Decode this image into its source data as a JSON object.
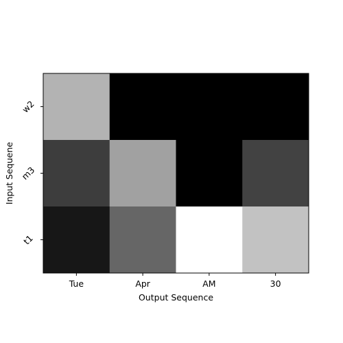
{
  "chart_data": {
    "type": "heatmap",
    "title": "",
    "xlabel": "Output Sequence",
    "ylabel": "Input Sequene",
    "x_categories": [
      "Tue",
      "Apr",
      "AM",
      "30"
    ],
    "y_categories": [
      "w2",
      "m3",
      "t1"
    ],
    "colormap": "grayscale (0 = black, 1 = white)",
    "values": [
      [
        0.7,
        0.0,
        0.0,
        0.0
      ],
      [
        0.24,
        0.63,
        0.0,
        0.26
      ],
      [
        0.09,
        0.4,
        1.0,
        0.76
      ]
    ],
    "grid": false,
    "legend": "none"
  }
}
